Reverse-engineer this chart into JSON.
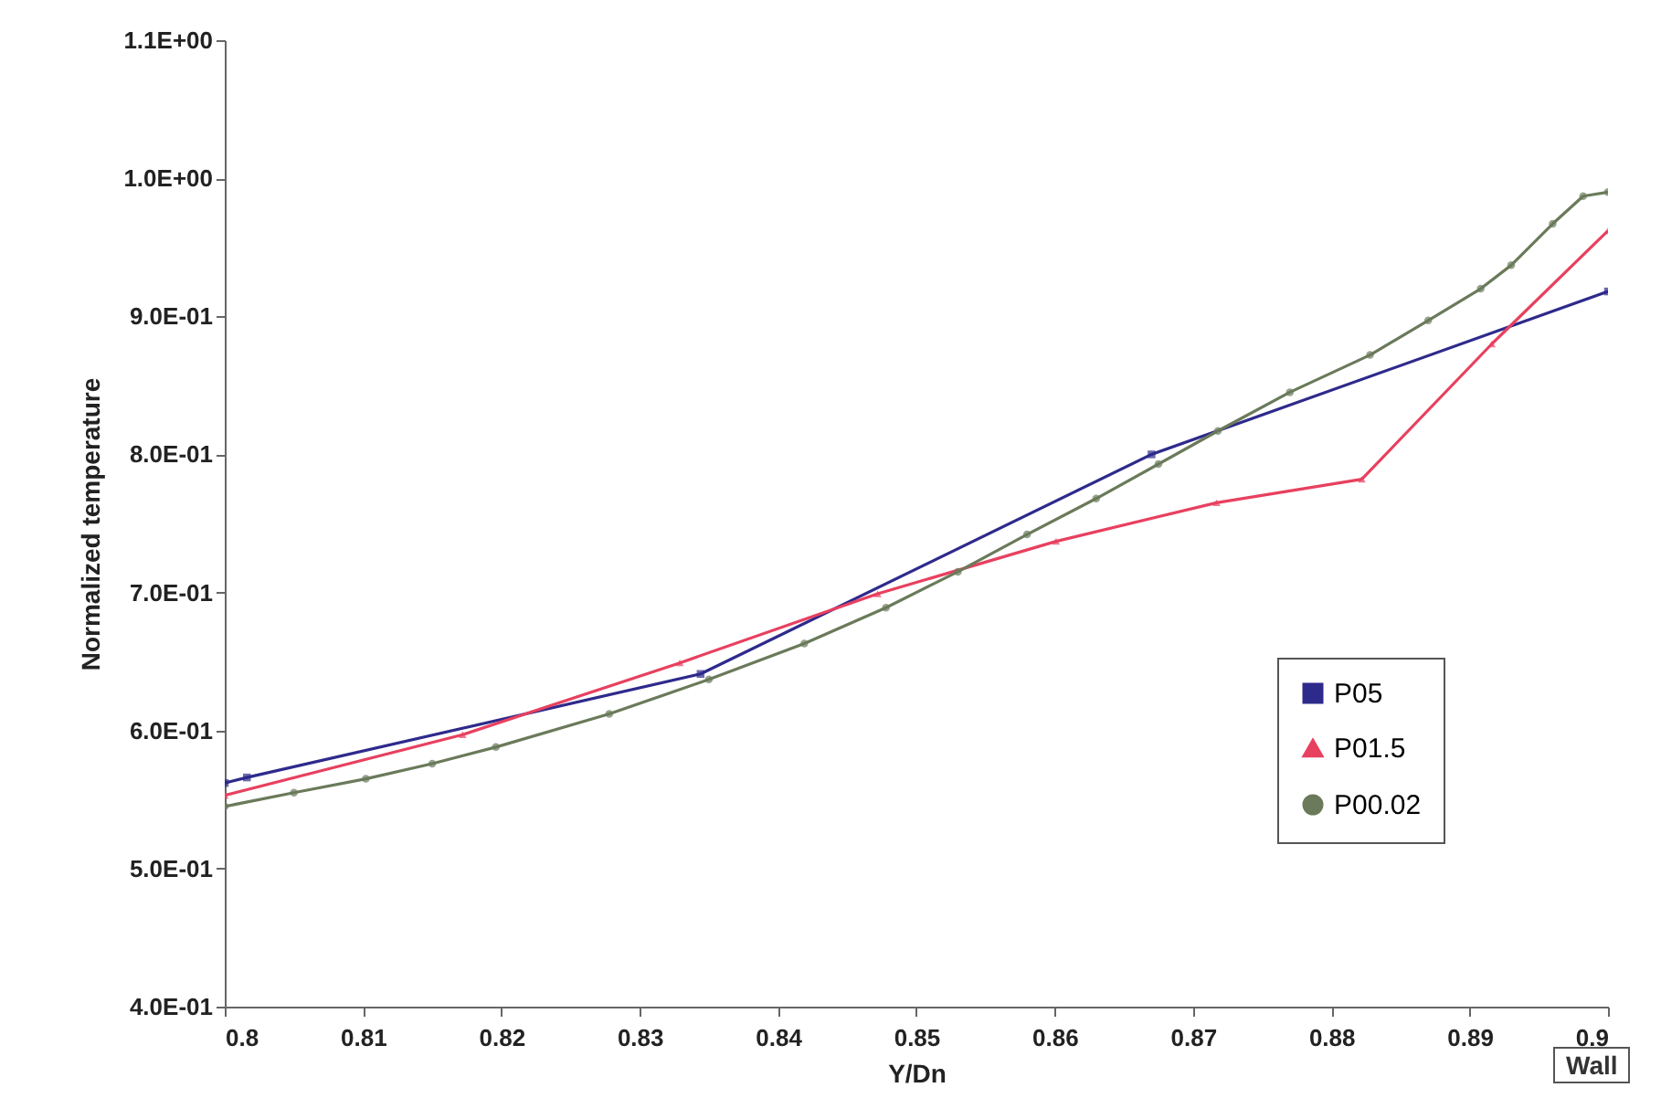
{
  "chart_data": {
    "type": "line",
    "xlabel": "Y/Dn",
    "ylabel": "Normalized temperature",
    "annotations": [
      "Wall"
    ],
    "xlim": [
      0.8,
      0.9
    ],
    "xticks": [
      0.8,
      0.81,
      0.82,
      0.83,
      0.84,
      0.85,
      0.86,
      0.87,
      0.88,
      0.89,
      0.9
    ],
    "ylim": [
      0.4,
      1.1
    ],
    "yticks": [
      {
        "value": 0.4,
        "label": "4.0E-01"
      },
      {
        "value": 0.5,
        "label": "5.0E-01"
      },
      {
        "value": 0.6,
        "label": "6.0E-01"
      },
      {
        "value": 0.7,
        "label": "7.0E-01"
      },
      {
        "value": 0.8,
        "label": "8.0E-01"
      },
      {
        "value": 0.9,
        "label": "9.0E-01"
      },
      {
        "value": 1.0,
        "label": "1.0E+00"
      },
      {
        "value": 1.1,
        "label": "1.1E+00"
      }
    ],
    "grid": false,
    "legend": "bottom right",
    "line_style": "solid",
    "series": [
      {
        "name": "P05",
        "color": "#2e2a8c",
        "marker": "square",
        "x": [
          0.8,
          0.8016,
          0.8344,
          0.867,
          0.9
        ],
        "values": [
          0.562,
          0.566,
          0.641,
          0.8,
          0.918
        ]
      },
      {
        "name": "P01.5",
        "color": "#e8405f",
        "marker": "triangle",
        "x": [
          0.8,
          0.8172,
          0.8329,
          0.8472,
          0.8601,
          0.8717,
          0.8822,
          0.8916,
          0.9
        ],
        "values": [
          0.553,
          0.597,
          0.649,
          0.699,
          0.737,
          0.765,
          0.782,
          0.88,
          0.962
        ]
      },
      {
        "name": "P00.02",
        "color": "#6a7a5a",
        "marker": "circle",
        "x": [
          0.8,
          0.805,
          0.8102,
          0.815,
          0.8196,
          0.8278,
          0.835,
          0.8419,
          0.8478,
          0.853,
          0.858,
          0.863,
          0.8675,
          0.8718,
          0.877,
          0.8828,
          0.887,
          0.8908,
          0.893,
          0.896,
          0.8982,
          0.9
        ],
        "values": [
          0.545,
          0.555,
          0.565,
          0.576,
          0.588,
          0.612,
          0.637,
          0.663,
          0.689,
          0.715,
          0.742,
          0.768,
          0.793,
          0.817,
          0.845,
          0.872,
          0.897,
          0.92,
          0.937,
          0.967,
          0.987,
          0.99
        ]
      }
    ]
  }
}
